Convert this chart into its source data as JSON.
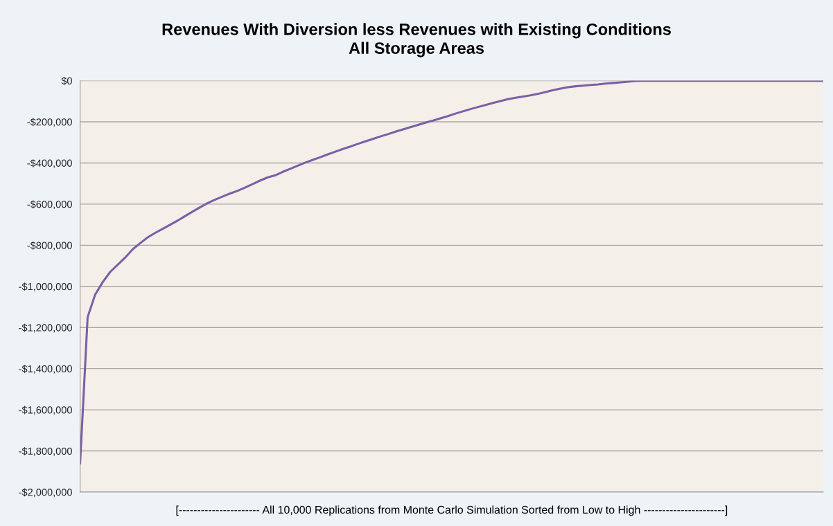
{
  "chart_data": {
    "type": "line",
    "title": "Revenues With Diversion less Revenues with Existing Conditions\nAll Storage Areas",
    "xlabel": "[---------------------- All 10,000 Replications from Monte Carlo Simulation Sorted from Low to High ----------------------]",
    "categories": [
      null,
      null,
      null,
      null,
      null,
      null,
      null,
      null,
      null,
      null,
      null,
      null,
      null,
      null,
      null,
      null,
      null,
      null,
      null,
      null,
      null,
      null,
      null,
      null,
      null,
      null,
      null,
      null,
      null,
      null,
      null,
      null,
      null,
      null,
      null,
      null,
      null,
      null,
      null,
      null,
      null,
      null,
      null,
      null,
      null,
      null,
      null,
      null,
      null,
      null,
      null,
      null,
      null,
      null,
      null,
      null,
      null,
      null,
      null,
      null,
      null,
      null,
      null,
      null,
      null,
      null,
      null,
      null,
      null,
      null,
      null,
      null,
      null,
      null,
      null,
      null,
      null,
      null,
      null,
      null,
      null,
      null,
      null,
      null,
      null,
      null,
      null,
      null,
      null,
      null,
      null,
      null,
      null,
      null,
      null,
      null,
      null,
      null,
      null,
      null
    ],
    "series": [
      {
        "color": "#7b5fa6",
        "values": [
          -1860000,
          -1150000,
          -1040000,
          -980000,
          -930000,
          -895000,
          -860000,
          -820000,
          -790000,
          -762000,
          -740000,
          -720000,
          -700000,
          -680000,
          -658000,
          -636000,
          -615000,
          -595000,
          -578000,
          -563000,
          -548000,
          -535000,
          -519000,
          -502000,
          -485000,
          -470000,
          -460000,
          -443000,
          -428000,
          -413000,
          -398000,
          -385000,
          -372000,
          -358000,
          -345000,
          -332000,
          -320000,
          -307000,
          -295000,
          -283000,
          -271000,
          -260000,
          -248000,
          -237000,
          -226000,
          -215000,
          -204000,
          -194000,
          -183000,
          -172000,
          -160000,
          -149000,
          -138000,
          -128000,
          -118000,
          -108000,
          -99000,
          -90000,
          -83000,
          -77000,
          -71000,
          -64000,
          -55000,
          -46000,
          -38000,
          -32000,
          -27000,
          -24000,
          -21000,
          -18000,
          -14000,
          -11000,
          -8000,
          -5000,
          -1000,
          0,
          0,
          0,
          0,
          0,
          0,
          0,
          0,
          0,
          0,
          0,
          0,
          0,
          0,
          0,
          0,
          0,
          0,
          0,
          0,
          0,
          0,
          0,
          0,
          0
        ]
      }
    ],
    "ylim": [
      -2000000,
      0
    ],
    "yticks": [
      {
        "value": -2000000,
        "label": "-$2,000,000"
      },
      {
        "value": -1800000,
        "label": "-$1,800,000"
      },
      {
        "value": -1600000,
        "label": "-$1,600,000"
      },
      {
        "value": -1400000,
        "label": "-$1,400,000"
      },
      {
        "value": -1200000,
        "label": "-$1,200,000"
      },
      {
        "value": -1000000,
        "label": "-$1,000,000"
      },
      {
        "value": -800000,
        "label": "-$800,000"
      },
      {
        "value": -600000,
        "label": "-$600,000"
      },
      {
        "value": -400000,
        "label": "-$400,000"
      },
      {
        "value": -200000,
        "label": "-$200,000"
      },
      {
        "value": 0,
        "label": "$0"
      }
    ],
    "grid": "y",
    "tick_labels": "y",
    "marker": "none",
    "line_style": "solid"
  }
}
